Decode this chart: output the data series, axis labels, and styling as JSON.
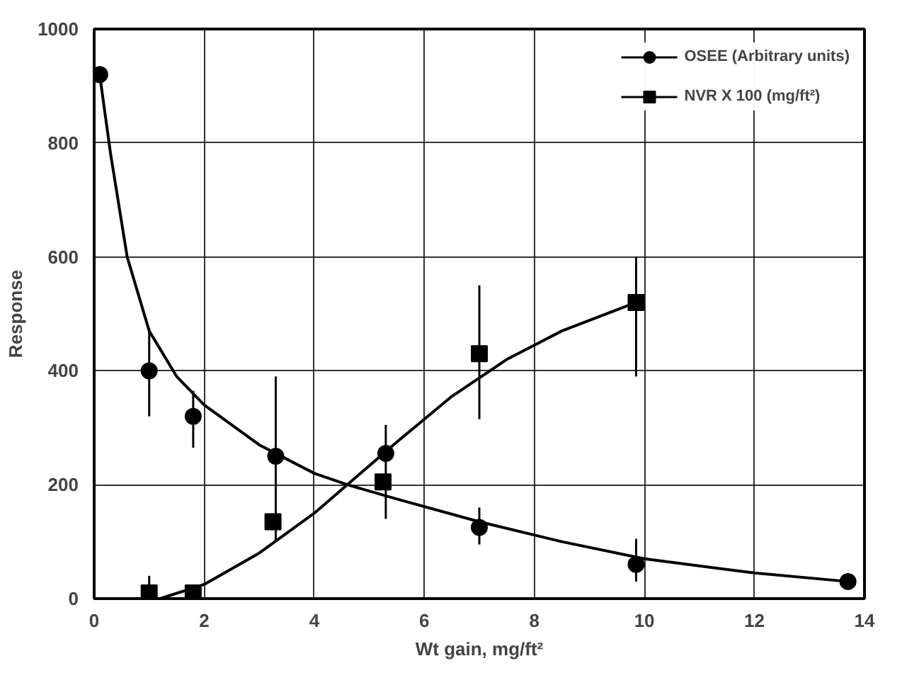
{
  "chart_data": {
    "type": "scatter",
    "xlabel": "Wt gain, mg/ft²",
    "ylabel": "Response",
    "xlim": [
      0,
      14
    ],
    "ylim": [
      0,
      1000
    ],
    "xticks": [
      0,
      2,
      4,
      6,
      8,
      10,
      12,
      14
    ],
    "yticks": [
      0,
      200,
      400,
      600,
      800,
      1000
    ],
    "grid": true,
    "legend": "top right",
    "series": [
      {
        "name": "OSEE (Arbitrary units)",
        "color": "#000000",
        "marker": "circle",
        "x": [
          0.1,
          1.0,
          1.8,
          3.3,
          5.3,
          7.0,
          9.85,
          13.7
        ],
        "values": [
          920,
          400,
          320,
          250,
          255,
          125,
          60,
          30
        ],
        "errors": [
          null,
          [
            320,
            475
          ],
          [
            265,
            365
          ],
          [
            100,
            390
          ],
          [
            140,
            305
          ],
          [
            95,
            160
          ],
          [
            30,
            105
          ],
          null
        ]
      },
      {
        "name": "NVR X 100 (mg/ft²)",
        "color": "#000000",
        "marker": "square",
        "x": [
          1.0,
          1.8,
          3.25,
          5.25,
          7.0,
          9.85
        ],
        "values": [
          10,
          10,
          135,
          205,
          430,
          520
        ],
        "errors": [
          [
            0,
            40
          ],
          null,
          null,
          null,
          [
            315,
            550
          ],
          [
            390,
            600
          ]
        ]
      },
      {
        "type": "line",
        "color": "#000000",
        "x": [
          0.1,
          0.3,
          0.6,
          1.0,
          1.5,
          2.0,
          3.0,
          4.0,
          4.6,
          5.5,
          7.0,
          8.5,
          10.0,
          12.0,
          13.7
        ],
        "values": [
          920,
          780,
          600,
          470,
          390,
          340,
          270,
          220,
          200,
          175,
          135,
          100,
          70,
          45,
          30
        ]
      },
      {
        "type": "line",
        "color": "#000000",
        "x": [
          1.2,
          2.0,
          3.0,
          4.0,
          4.6,
          5.5,
          6.5,
          7.5,
          8.5,
          9.85
        ],
        "values": [
          0,
          25,
          80,
          150,
          200,
          275,
          355,
          420,
          470,
          520
        ]
      }
    ]
  }
}
